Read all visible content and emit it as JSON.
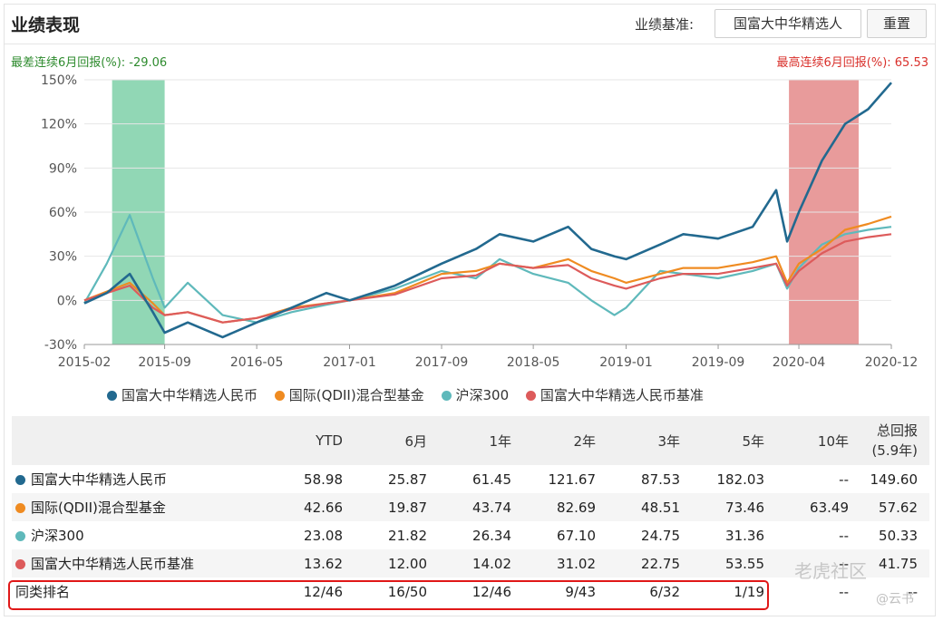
{
  "header": {
    "title": "业绩表现",
    "benchmark_label": "业绩基准:",
    "benchmark_value": "国富大中华精选人",
    "reset_label": "重置"
  },
  "stats": {
    "worst_label": "最差连续6月回报(%): -29.06",
    "best_label": "最高连续6月回报(%): 65.53"
  },
  "colors": {
    "fund": "#22698f",
    "category": "#ef8b21",
    "hs300": "#5fb9bb",
    "benchmark": "#dd5b5b",
    "worst_band": "#7ed0a8",
    "best_band": "#e48a8a"
  },
  "chart_data": {
    "type": "line",
    "x_tick_labels": [
      "2015-02",
      "2015-09",
      "2016-05",
      "2017-01",
      "2017-09",
      "2018-05",
      "2019-01",
      "2019-09",
      "2020-04",
      "2020-12"
    ],
    "y_tick_labels": [
      "150%",
      "120%",
      "90%",
      "60%",
      "30%",
      "0%",
      "-30%"
    ],
    "ylim": [
      -30,
      150
    ],
    "x": [
      "2015-02",
      "2015-04",
      "2015-06",
      "2015-08",
      "2015-09",
      "2015-11",
      "2016-02",
      "2016-05",
      "2016-08",
      "2016-11",
      "2017-01",
      "2017-05",
      "2017-09",
      "2017-12",
      "2018-02",
      "2018-05",
      "2018-08",
      "2018-10",
      "2018-12",
      "2019-01",
      "2019-04",
      "2019-06",
      "2019-09",
      "2019-12",
      "2020-02",
      "2020-03",
      "2020-04",
      "2020-06",
      "2020-08",
      "2020-10",
      "2020-12"
    ],
    "series": [
      {
        "name": "国富大中华精选人民币",
        "values": [
          -2,
          5,
          18,
          -8,
          -22,
          -15,
          -25,
          -15,
          -5,
          5,
          0,
          10,
          25,
          35,
          45,
          40,
          50,
          35,
          30,
          28,
          38,
          45,
          42,
          50,
          75,
          40,
          60,
          95,
          120,
          130,
          148
        ]
      },
      {
        "name": "国际(QDII)混合型基金",
        "values": [
          0,
          6,
          12,
          -2,
          -10,
          -8,
          -15,
          -12,
          -5,
          -2,
          0,
          5,
          18,
          20,
          25,
          22,
          28,
          20,
          15,
          12,
          18,
          22,
          22,
          26,
          30,
          12,
          25,
          35,
          48,
          52,
          57
        ]
      },
      {
        "name": "沪深300",
        "values": [
          -2,
          25,
          58,
          15,
          -5,
          12,
          -10,
          -15,
          -8,
          -3,
          0,
          8,
          20,
          15,
          28,
          18,
          12,
          0,
          -10,
          -5,
          20,
          18,
          15,
          20,
          25,
          8,
          22,
          38,
          45,
          48,
          50
        ]
      },
      {
        "name": "国富大中华精选人民币基准",
        "values": [
          0,
          5,
          10,
          -5,
          -10,
          -8,
          -15,
          -12,
          -6,
          -2,
          0,
          4,
          15,
          17,
          25,
          22,
          24,
          15,
          10,
          8,
          15,
          18,
          18,
          22,
          25,
          10,
          20,
          32,
          40,
          43,
          45
        ]
      }
    ],
    "worst_period": [
      "2015-04",
      "2015-09"
    ],
    "best_period": [
      "2020-03",
      "2020-09"
    ],
    "grid": true,
    "legend_position": "bottom"
  },
  "table": {
    "headers": [
      "YTD",
      "6月",
      "1年",
      "2年",
      "3年",
      "5年",
      "10年",
      "总回报",
      "(5.9年)"
    ],
    "rows": [
      {
        "name": "国富大中华精选人民币",
        "values": [
          "58.98",
          "25.87",
          "61.45",
          "121.67",
          "87.53",
          "182.03",
          "--",
          "149.60"
        ]
      },
      {
        "name": "国际(QDII)混合型基金",
        "values": [
          "42.66",
          "19.87",
          "43.74",
          "82.69",
          "48.51",
          "73.46",
          "63.49",
          "57.62"
        ]
      },
      {
        "name": "沪深300",
        "values": [
          "23.08",
          "21.82",
          "26.34",
          "67.10",
          "24.75",
          "31.36",
          "--",
          "50.33"
        ]
      },
      {
        "name": "国富大中华精选人民币基准",
        "values": [
          "13.62",
          "12.00",
          "14.02",
          "31.02",
          "22.75",
          "53.55",
          "--",
          "41.75"
        ]
      }
    ],
    "rank": {
      "name": "同类排名",
      "values": [
        "12/46",
        "16/50",
        "12/46",
        "9/43",
        "6/32",
        "1/19",
        "--",
        "--"
      ]
    }
  },
  "watermark": {
    "main": "老虎社区",
    "sub": "@云书"
  }
}
